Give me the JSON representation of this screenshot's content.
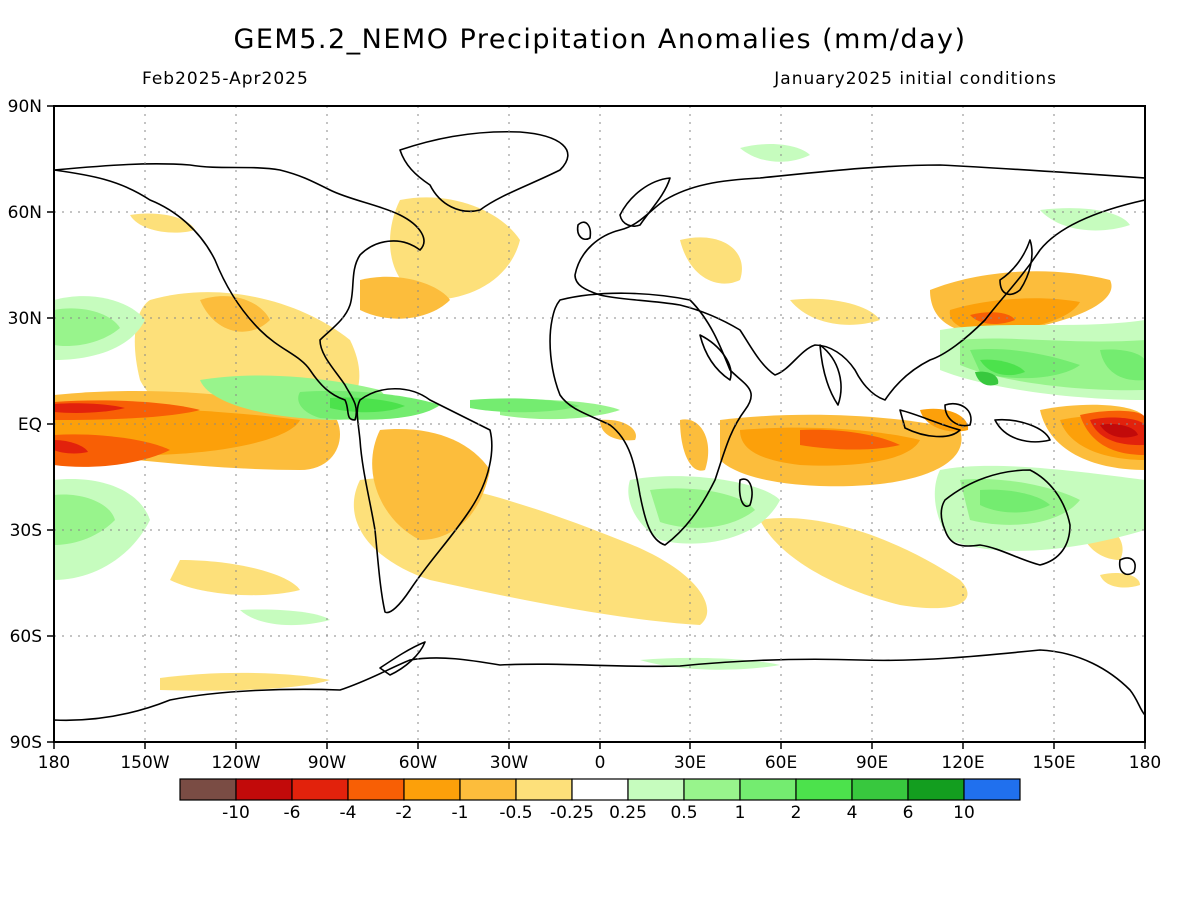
{
  "title": "GEM5.2_NEMO Precipitation Anomalies (mm/day)",
  "period": "Feb2025-Apr2025",
  "initial_conditions": "January2025 initial conditions",
  "axes": {
    "lon_labels": [
      "180",
      "150W",
      "120W",
      "90W",
      "60W",
      "30W",
      "0",
      "30E",
      "60E",
      "90E",
      "120E",
      "150E",
      "180"
    ],
    "lat_labels": [
      "90N",
      "60N",
      "30N",
      "EQ",
      "30S",
      "60S",
      "90S"
    ]
  },
  "legend": {
    "colors": [
      "#7a4c44",
      "#c20a0a",
      "#e2220c",
      "#f85f05",
      "#fca00a",
      "#fcbd3c",
      "#fde07a",
      "#ffffff",
      "#c6fcbe",
      "#98f48c",
      "#74ec70",
      "#4ce24c",
      "#38c83e",
      "#139e1f",
      "#2070ee"
    ],
    "labels": [
      "-10",
      "-6",
      "-4",
      "-2",
      "-1",
      "-0.5",
      "-0.25",
      "0.25",
      "0.5",
      "1",
      "2",
      "4",
      "6",
      "10"
    ]
  }
}
